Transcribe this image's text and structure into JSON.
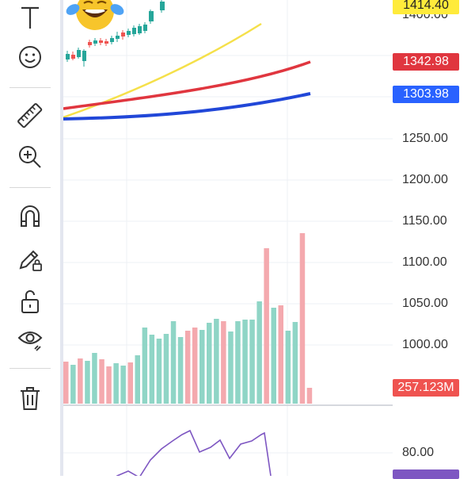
{
  "toolbar": {
    "tools": [
      {
        "name": "text-tool",
        "icon": "text-icon"
      },
      {
        "name": "emoji-tool",
        "icon": "smiley-icon"
      },
      {
        "name": "measure-tool",
        "icon": "ruler-icon"
      },
      {
        "name": "zoom-tool",
        "icon": "zoom-in-icon"
      },
      {
        "name": "magnet-tool",
        "icon": "magnet-icon"
      },
      {
        "name": "lock-drawings-tool",
        "icon": "pencil-lock-icon"
      },
      {
        "name": "lock-all-tool",
        "icon": "unlock-icon"
      },
      {
        "name": "hide-tool",
        "icon": "eye-icon"
      },
      {
        "name": "delete-tool",
        "icon": "trash-icon"
      }
    ]
  },
  "price_scale": {
    "ticks": [
      "1400.00",
      "1250.00",
      "1200.00",
      "1150.00",
      "1100.00",
      "1050.00",
      "1000.00",
      "80.00"
    ]
  },
  "badges": {
    "price_yellow": "1414.40",
    "price_red": "1342.98",
    "price_blue": "1303.98",
    "volume": "257.123M"
  },
  "colors": {
    "bull": "#26a69a",
    "bear": "#ef5350",
    "vol_bull": "#8fd5c6",
    "vol_bear": "#f4a9ae",
    "ma_yellow": "#f5e04a",
    "ma_red": "#e0363f",
    "ma_blue": "#2147d8",
    "rsi": "#7e57c2",
    "yellow_badge": "#ffeb3b",
    "red_badge": "#e0363f",
    "blue_badge": "#2962ff",
    "volume_badge": "#ef5350"
  },
  "chart_data": {
    "type": "bar",
    "volume": [
      {
        "v": 53,
        "up": false
      },
      {
        "v": 49,
        "up": true
      },
      {
        "v": 57,
        "up": false
      },
      {
        "v": 54,
        "up": true
      },
      {
        "v": 64,
        "up": true
      },
      {
        "v": 56,
        "up": false
      },
      {
        "v": 47,
        "up": false
      },
      {
        "v": 51,
        "up": true
      },
      {
        "v": 48,
        "up": true
      },
      {
        "v": 52,
        "up": false
      },
      {
        "v": 61,
        "up": true
      },
      {
        "v": 96,
        "up": true
      },
      {
        "v": 87,
        "up": true
      },
      {
        "v": 82,
        "up": true
      },
      {
        "v": 88,
        "up": true
      },
      {
        "v": 104,
        "up": true
      },
      {
        "v": 84,
        "up": true
      },
      {
        "v": 92,
        "up": false
      },
      {
        "v": 96,
        "up": false
      },
      {
        "v": 93,
        "up": true
      },
      {
        "v": 102,
        "up": true
      },
      {
        "v": 107,
        "up": true
      },
      {
        "v": 104,
        "up": false
      },
      {
        "v": 91,
        "up": true
      },
      {
        "v": 104,
        "up": true
      },
      {
        "v": 106,
        "up": true
      },
      {
        "v": 106,
        "up": true
      },
      {
        "v": 129,
        "up": true
      },
      {
        "v": 196,
        "up": false
      },
      {
        "v": 121,
        "up": true
      },
      {
        "v": 124,
        "up": false
      },
      {
        "v": 92,
        "up": true
      },
      {
        "v": 103,
        "up": true
      },
      {
        "v": 215,
        "up": false
      },
      {
        "v": 20,
        "up": false
      }
    ]
  }
}
